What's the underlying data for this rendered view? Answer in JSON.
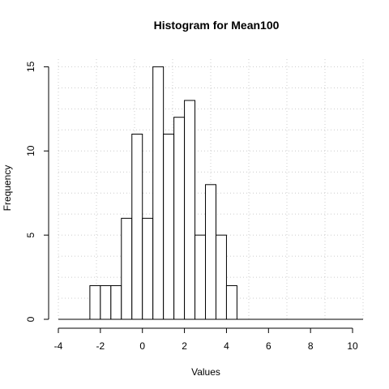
{
  "chart_data": {
    "type": "bar",
    "title": "Histogram for Mean100",
    "xlabel": "Values",
    "ylabel": "Frequency",
    "xlim": [
      -4,
      10.5
    ],
    "ylim": [
      0,
      15.5
    ],
    "x_ticks": [
      -4,
      -2,
      0,
      2,
      4,
      6,
      8,
      10
    ],
    "y_ticks": [
      0,
      5,
      10,
      15
    ],
    "grid": true,
    "bin_width": 0.5,
    "bins": [
      {
        "start": -2.5,
        "end": -2.0,
        "count": 2
      },
      {
        "start": -2.0,
        "end": -1.5,
        "count": 2
      },
      {
        "start": -1.5,
        "end": -1.0,
        "count": 2
      },
      {
        "start": -1.0,
        "end": -0.5,
        "count": 6
      },
      {
        "start": -0.5,
        "end": 0.0,
        "count": 11
      },
      {
        "start": 0.0,
        "end": 0.5,
        "count": 6
      },
      {
        "start": 0.5,
        "end": 1.0,
        "count": 15
      },
      {
        "start": 1.0,
        "end": 1.5,
        "count": 11
      },
      {
        "start": 1.5,
        "end": 2.0,
        "count": 12
      },
      {
        "start": 2.0,
        "end": 2.5,
        "count": 13
      },
      {
        "start": 2.5,
        "end": 3.0,
        "count": 5
      },
      {
        "start": 3.0,
        "end": 3.5,
        "count": 8
      },
      {
        "start": 3.5,
        "end": 4.0,
        "count": 5
      },
      {
        "start": 4.0,
        "end": 4.5,
        "count": 2
      }
    ]
  }
}
